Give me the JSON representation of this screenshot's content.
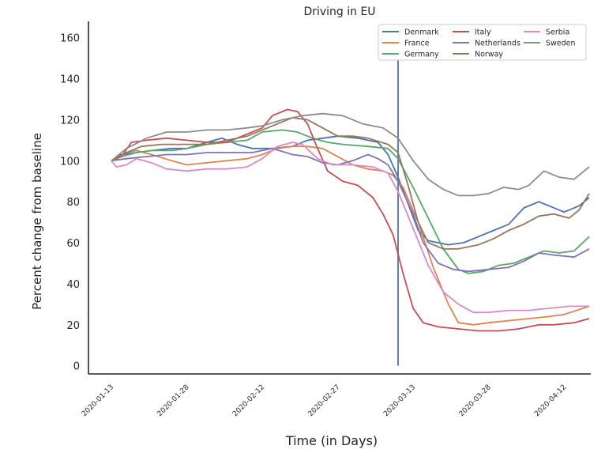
{
  "chart_data": {
    "type": "line",
    "title": "Driving in EU",
    "xlabel": "Time (in Days)",
    "ylabel": "Percent change from baseline",
    "x_start": "2020-01-13",
    "x_end": "2020-04-17",
    "xticks": [
      "2020-01-13",
      "2020-01-28",
      "2020-02-12",
      "2020-02-27",
      "2020-03-13",
      "2020-03-28",
      "2020-04-12"
    ],
    "ylim": [
      -4,
      168
    ],
    "yticks": [
      0,
      20,
      40,
      60,
      80,
      100,
      120,
      140,
      160
    ],
    "grid": false,
    "legend_position": "top-right",
    "vline": {
      "x": "2020-03-10",
      "color": "#4c72b0"
    },
    "series": [
      {
        "name": "Denmark",
        "color": "#4c72b0",
        "points": [
          [
            "2020-01-13",
            100
          ],
          [
            "2020-01-15",
            103
          ],
          [
            "2020-01-18",
            104
          ],
          [
            "2020-01-21",
            105
          ],
          [
            "2020-01-25",
            106
          ],
          [
            "2020-01-28",
            106
          ],
          [
            "2020-02-01",
            109
          ],
          [
            "2020-02-04",
            111
          ],
          [
            "2020-02-07",
            108
          ],
          [
            "2020-02-10",
            106
          ],
          [
            "2020-02-14",
            106
          ],
          [
            "2020-02-18",
            107
          ],
          [
            "2020-02-21",
            110
          ],
          [
            "2020-02-24",
            111
          ],
          [
            "2020-02-27",
            112
          ],
          [
            "2020-03-02",
            111
          ],
          [
            "2020-03-06",
            109
          ],
          [
            "2020-03-08",
            103
          ],
          [
            "2020-03-10",
            92
          ],
          [
            "2020-03-12",
            79
          ],
          [
            "2020-03-14",
            66
          ],
          [
            "2020-03-16",
            61
          ],
          [
            "2020-03-18",
            60
          ],
          [
            "2020-03-20",
            59
          ],
          [
            "2020-03-23",
            60
          ],
          [
            "2020-03-26",
            63
          ],
          [
            "2020-03-29",
            66
          ],
          [
            "2020-04-01",
            69
          ],
          [
            "2020-04-04",
            77
          ],
          [
            "2020-04-07",
            80
          ],
          [
            "2020-04-09",
            78
          ],
          [
            "2020-04-12",
            75
          ],
          [
            "2020-04-15",
            78
          ],
          [
            "2020-04-17",
            82
          ]
        ]
      },
      {
        "name": "France",
        "color": "#dd8452",
        "points": [
          [
            "2020-01-13",
            100
          ],
          [
            "2020-01-16",
            104
          ],
          [
            "2020-01-18",
            105
          ],
          [
            "2020-01-21",
            103
          ],
          [
            "2020-01-25",
            100
          ],
          [
            "2020-01-28",
            98
          ],
          [
            "2020-02-01",
            99
          ],
          [
            "2020-02-05",
            100
          ],
          [
            "2020-02-09",
            101
          ],
          [
            "2020-02-12",
            103
          ],
          [
            "2020-02-15",
            106
          ],
          [
            "2020-02-18",
            107
          ],
          [
            "2020-02-21",
            107
          ],
          [
            "2020-02-24",
            106
          ],
          [
            "2020-02-27",
            102
          ],
          [
            "2020-03-01",
            98
          ],
          [
            "2020-03-04",
            96
          ],
          [
            "2020-03-07",
            95
          ],
          [
            "2020-03-09",
            93
          ],
          [
            "2020-03-11",
            87
          ],
          [
            "2020-03-14",
            70
          ],
          [
            "2020-03-17",
            48
          ],
          [
            "2020-03-20",
            30
          ],
          [
            "2020-03-22",
            21
          ],
          [
            "2020-03-25",
            20
          ],
          [
            "2020-03-28",
            21
          ],
          [
            "2020-04-01",
            22
          ],
          [
            "2020-04-05",
            23
          ],
          [
            "2020-04-09",
            24
          ],
          [
            "2020-04-12",
            25
          ],
          [
            "2020-04-17",
            29
          ]
        ]
      },
      {
        "name": "Germany",
        "color": "#55a868",
        "points": [
          [
            "2020-01-13",
            100
          ],
          [
            "2020-01-15",
            102
          ],
          [
            "2020-01-18",
            104
          ],
          [
            "2020-01-21",
            105
          ],
          [
            "2020-01-25",
            105
          ],
          [
            "2020-01-28",
            106
          ],
          [
            "2020-02-01",
            108
          ],
          [
            "2020-02-05",
            109
          ],
          [
            "2020-02-09",
            110
          ],
          [
            "2020-02-12",
            114
          ],
          [
            "2020-02-16",
            115
          ],
          [
            "2020-02-19",
            114
          ],
          [
            "2020-02-22",
            111
          ],
          [
            "2020-02-25",
            109
          ],
          [
            "2020-02-28",
            108
          ],
          [
            "2020-03-04",
            107
          ],
          [
            "2020-03-08",
            106
          ],
          [
            "2020-03-10",
            101
          ],
          [
            "2020-03-13",
            87
          ],
          [
            "2020-03-16",
            72
          ],
          [
            "2020-03-19",
            57
          ],
          [
            "2020-03-22",
            47
          ],
          [
            "2020-03-24",
            45
          ],
          [
            "2020-03-27",
            46
          ],
          [
            "2020-03-30",
            49
          ],
          [
            "2020-04-02",
            50
          ],
          [
            "2020-04-05",
            53
          ],
          [
            "2020-04-08",
            56
          ],
          [
            "2020-04-11",
            55
          ],
          [
            "2020-04-14",
            56
          ],
          [
            "2020-04-17",
            63
          ]
        ]
      },
      {
        "name": "Italy",
        "color": "#c44e52",
        "points": [
          [
            "2020-01-13",
            100
          ],
          [
            "2020-01-15",
            102
          ],
          [
            "2020-01-17",
            109
          ],
          [
            "2020-01-20",
            110
          ],
          [
            "2020-01-24",
            111
          ],
          [
            "2020-01-28",
            110
          ],
          [
            "2020-02-01",
            109
          ],
          [
            "2020-02-05",
            109
          ],
          [
            "2020-02-09",
            113
          ],
          [
            "2020-02-12",
            116
          ],
          [
            "2020-02-14",
            122
          ],
          [
            "2020-02-17",
            125
          ],
          [
            "2020-02-19",
            124
          ],
          [
            "2020-02-21",
            118
          ],
          [
            "2020-02-23",
            106
          ],
          [
            "2020-02-25",
            95
          ],
          [
            "2020-02-28",
            90
          ],
          [
            "2020-03-02",
            88
          ],
          [
            "2020-03-05",
            82
          ],
          [
            "2020-03-07",
            74
          ],
          [
            "2020-03-09",
            64
          ],
          [
            "2020-03-11",
            45
          ],
          [
            "2020-03-13",
            28
          ],
          [
            "2020-03-15",
            21
          ],
          [
            "2020-03-18",
            19
          ],
          [
            "2020-03-22",
            18
          ],
          [
            "2020-03-26",
            17
          ],
          [
            "2020-03-30",
            17
          ],
          [
            "2020-04-03",
            18
          ],
          [
            "2020-04-07",
            20
          ],
          [
            "2020-04-10",
            20
          ],
          [
            "2020-04-14",
            21
          ],
          [
            "2020-04-17",
            23
          ]
        ]
      },
      {
        "name": "Netherlands",
        "color": "#8172b3",
        "points": [
          [
            "2020-01-13",
            100
          ],
          [
            "2020-01-16",
            101
          ],
          [
            "2020-01-20",
            102
          ],
          [
            "2020-01-24",
            103
          ],
          [
            "2020-01-28",
            103
          ],
          [
            "2020-02-01",
            104
          ],
          [
            "2020-02-04",
            104
          ],
          [
            "2020-02-07",
            104
          ],
          [
            "2020-02-10",
            104
          ],
          [
            "2020-02-14",
            106
          ],
          [
            "2020-02-18",
            103
          ],
          [
            "2020-02-21",
            102
          ],
          [
            "2020-02-24",
            99
          ],
          [
            "2020-02-27",
            98
          ],
          [
            "2020-03-01",
            100
          ],
          [
            "2020-03-04",
            103
          ],
          [
            "2020-03-06",
            101
          ],
          [
            "2020-03-08",
            98
          ],
          [
            "2020-03-10",
            90
          ],
          [
            "2020-03-13",
            74
          ],
          [
            "2020-03-15",
            60
          ],
          [
            "2020-03-18",
            50
          ],
          [
            "2020-03-21",
            47
          ],
          [
            "2020-03-24",
            46
          ],
          [
            "2020-03-28",
            47
          ],
          [
            "2020-04-01",
            48
          ],
          [
            "2020-04-04",
            51
          ],
          [
            "2020-04-07",
            55
          ],
          [
            "2020-04-10",
            54
          ],
          [
            "2020-04-14",
            53
          ],
          [
            "2020-04-17",
            57
          ]
        ]
      },
      {
        "name": "Norway",
        "color": "#937860",
        "points": [
          [
            "2020-01-13",
            100
          ],
          [
            "2020-01-16",
            104
          ],
          [
            "2020-01-19",
            107
          ],
          [
            "2020-01-23",
            108
          ],
          [
            "2020-01-28",
            108
          ],
          [
            "2020-02-01",
            108
          ],
          [
            "2020-02-05",
            110
          ],
          [
            "2020-02-09",
            112
          ],
          [
            "2020-02-12",
            115
          ],
          [
            "2020-02-15",
            118
          ],
          [
            "2020-02-18",
            121
          ],
          [
            "2020-02-21",
            120
          ],
          [
            "2020-02-24",
            116
          ],
          [
            "2020-02-27",
            112
          ],
          [
            "2020-03-01",
            112
          ],
          [
            "2020-03-04",
            111
          ],
          [
            "2020-03-08",
            108
          ],
          [
            "2020-03-10",
            104
          ],
          [
            "2020-03-12",
            88
          ],
          [
            "2020-03-14",
            70
          ],
          [
            "2020-03-16",
            60
          ],
          [
            "2020-03-19",
            57
          ],
          [
            "2020-03-22",
            57
          ],
          [
            "2020-03-26",
            59
          ],
          [
            "2020-03-29",
            62
          ],
          [
            "2020-04-01",
            66
          ],
          [
            "2020-04-04",
            69
          ],
          [
            "2020-04-07",
            73
          ],
          [
            "2020-04-10",
            74
          ],
          [
            "2020-04-13",
            72
          ],
          [
            "2020-04-15",
            76
          ],
          [
            "2020-04-17",
            84
          ]
        ]
      },
      {
        "name": "Serbia",
        "color": "#da8bc3",
        "points": [
          [
            "2020-01-13",
            100
          ],
          [
            "2020-01-14",
            97
          ],
          [
            "2020-01-16",
            98
          ],
          [
            "2020-01-18",
            101
          ],
          [
            "2020-01-21",
            99
          ],
          [
            "2020-01-24",
            96
          ],
          [
            "2020-01-28",
            95
          ],
          [
            "2020-02-01",
            96
          ],
          [
            "2020-02-05",
            96
          ],
          [
            "2020-02-09",
            97
          ],
          [
            "2020-02-12",
            101
          ],
          [
            "2020-02-15",
            107
          ],
          [
            "2020-02-18",
            109
          ],
          [
            "2020-02-20",
            108
          ],
          [
            "2020-02-23",
            101
          ],
          [
            "2020-02-26",
            98
          ],
          [
            "2020-03-01",
            98
          ],
          [
            "2020-03-05",
            97
          ],
          [
            "2020-03-08",
            94
          ],
          [
            "2020-03-10",
            85
          ],
          [
            "2020-03-13",
            67
          ],
          [
            "2020-03-16",
            49
          ],
          [
            "2020-03-19",
            36
          ],
          [
            "2020-03-22",
            30
          ],
          [
            "2020-03-25",
            26
          ],
          [
            "2020-03-28",
            26
          ],
          [
            "2020-04-01",
            27
          ],
          [
            "2020-04-05",
            27
          ],
          [
            "2020-04-09",
            28
          ],
          [
            "2020-04-13",
            29
          ],
          [
            "2020-04-17",
            29
          ]
        ]
      },
      {
        "name": "Sweden",
        "color": "#8c8c8c",
        "points": [
          [
            "2020-01-13",
            100
          ],
          [
            "2020-01-16",
            106
          ],
          [
            "2020-01-20",
            111
          ],
          [
            "2020-01-24",
            114
          ],
          [
            "2020-01-28",
            114
          ],
          [
            "2020-02-01",
            115
          ],
          [
            "2020-02-05",
            115
          ],
          [
            "2020-02-09",
            116
          ],
          [
            "2020-02-12",
            117
          ],
          [
            "2020-02-16",
            120
          ],
          [
            "2020-02-20",
            122
          ],
          [
            "2020-02-24",
            123
          ],
          [
            "2020-02-28",
            122
          ],
          [
            "2020-03-03",
            118
          ],
          [
            "2020-03-07",
            116
          ],
          [
            "2020-03-10",
            111
          ],
          [
            "2020-03-13",
            100
          ],
          [
            "2020-03-16",
            91
          ],
          [
            "2020-03-19",
            86
          ],
          [
            "2020-03-22",
            83
          ],
          [
            "2020-03-25",
            83
          ],
          [
            "2020-03-28",
            84
          ],
          [
            "2020-03-31",
            87
          ],
          [
            "2020-04-03",
            86
          ],
          [
            "2020-04-05",
            88
          ],
          [
            "2020-04-08",
            95
          ],
          [
            "2020-04-11",
            92
          ],
          [
            "2020-04-14",
            91
          ],
          [
            "2020-04-17",
            97
          ]
        ]
      }
    ]
  }
}
